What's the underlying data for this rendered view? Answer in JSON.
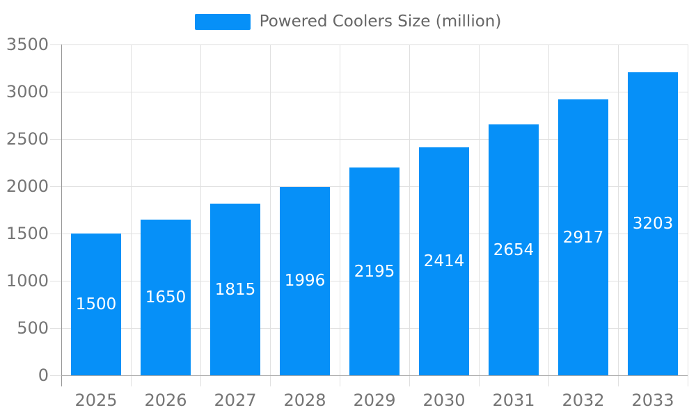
{
  "chart_data": {
    "type": "bar",
    "legend_label": "Powered Coolers Size (million)",
    "legend_position": "top-center",
    "categories": [
      "2025",
      "2026",
      "2027",
      "2028",
      "2029",
      "2030",
      "2031",
      "2032",
      "2033"
    ],
    "values": [
      1500,
      1650,
      1815,
      1996,
      2195,
      2414,
      2654,
      2917,
      3203
    ],
    "series": [
      {
        "name": "Powered Coolers Size (million)",
        "values": [
          1500,
          1650,
          1815,
          1996,
          2195,
          2414,
          2654,
          2917,
          3203
        ]
      }
    ],
    "title": "",
    "xlabel": "",
    "ylabel": "",
    "ylim": [
      0,
      3500
    ],
    "yticks": [
      0,
      500,
      1000,
      1500,
      2000,
      2500,
      3000,
      3500
    ],
    "grid": "on",
    "value_labels": "inside-center",
    "colors": {
      "bar": "#0690f8",
      "bar_value_label": "#ffffff",
      "grid_line": "#e0e0e0",
      "y_axis_line": "#999999",
      "x_axis_line": "#aaaaaa",
      "axis_text": "#757575",
      "legend_text": "#666666",
      "background": "#ffffff"
    }
  }
}
